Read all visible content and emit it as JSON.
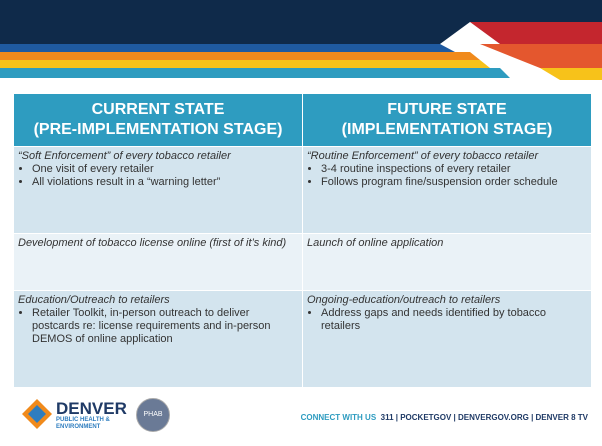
{
  "table": {
    "headers": [
      [
        "CURRENT STATE",
        "(PRE-IMPLEMENTATION STAGE)"
      ],
      [
        "FUTURE STATE",
        "(IMPLEMENTATION STAGE)"
      ]
    ],
    "rows": [
      [
        {
          "title": "“Soft Enforcement” of every tobacco retailer",
          "bullets": [
            "One visit of every retailer",
            "All violations result in a “warning letter”"
          ]
        },
        {
          "title": "“Routine Enforcement” of every tobacco retailer",
          "bullets": [
            "3-4 routine inspections of every retailer",
            "Follows program fine/suspension order schedule"
          ]
        }
      ],
      [
        {
          "title": "Development of tobacco license online (first of it’s kind)",
          "bullets": []
        },
        {
          "title": "Launch of online application",
          "bullets": []
        }
      ],
      [
        {
          "title": "Education/Outreach to retailers",
          "bullets": [
            "Retailer Toolkit, in-person outreach to deliver postcards re: license requirements and in-person DEMOS of online application"
          ]
        },
        {
          "title": "Ongoing-education/outreach to retailers",
          "bullets": [
            "Address gaps and needs identified by tobacco retailers"
          ]
        }
      ]
    ]
  },
  "footer": {
    "logo": [
      "DENVER",
      "PUBLIC HEALTH &",
      "ENVIRONMENT"
    ],
    "badge": "PHAB",
    "connect": "CONNECT WITH US",
    "links": "311 | POCKETGOV | DENVERGOV.ORG | DENVER 8 TV"
  }
}
